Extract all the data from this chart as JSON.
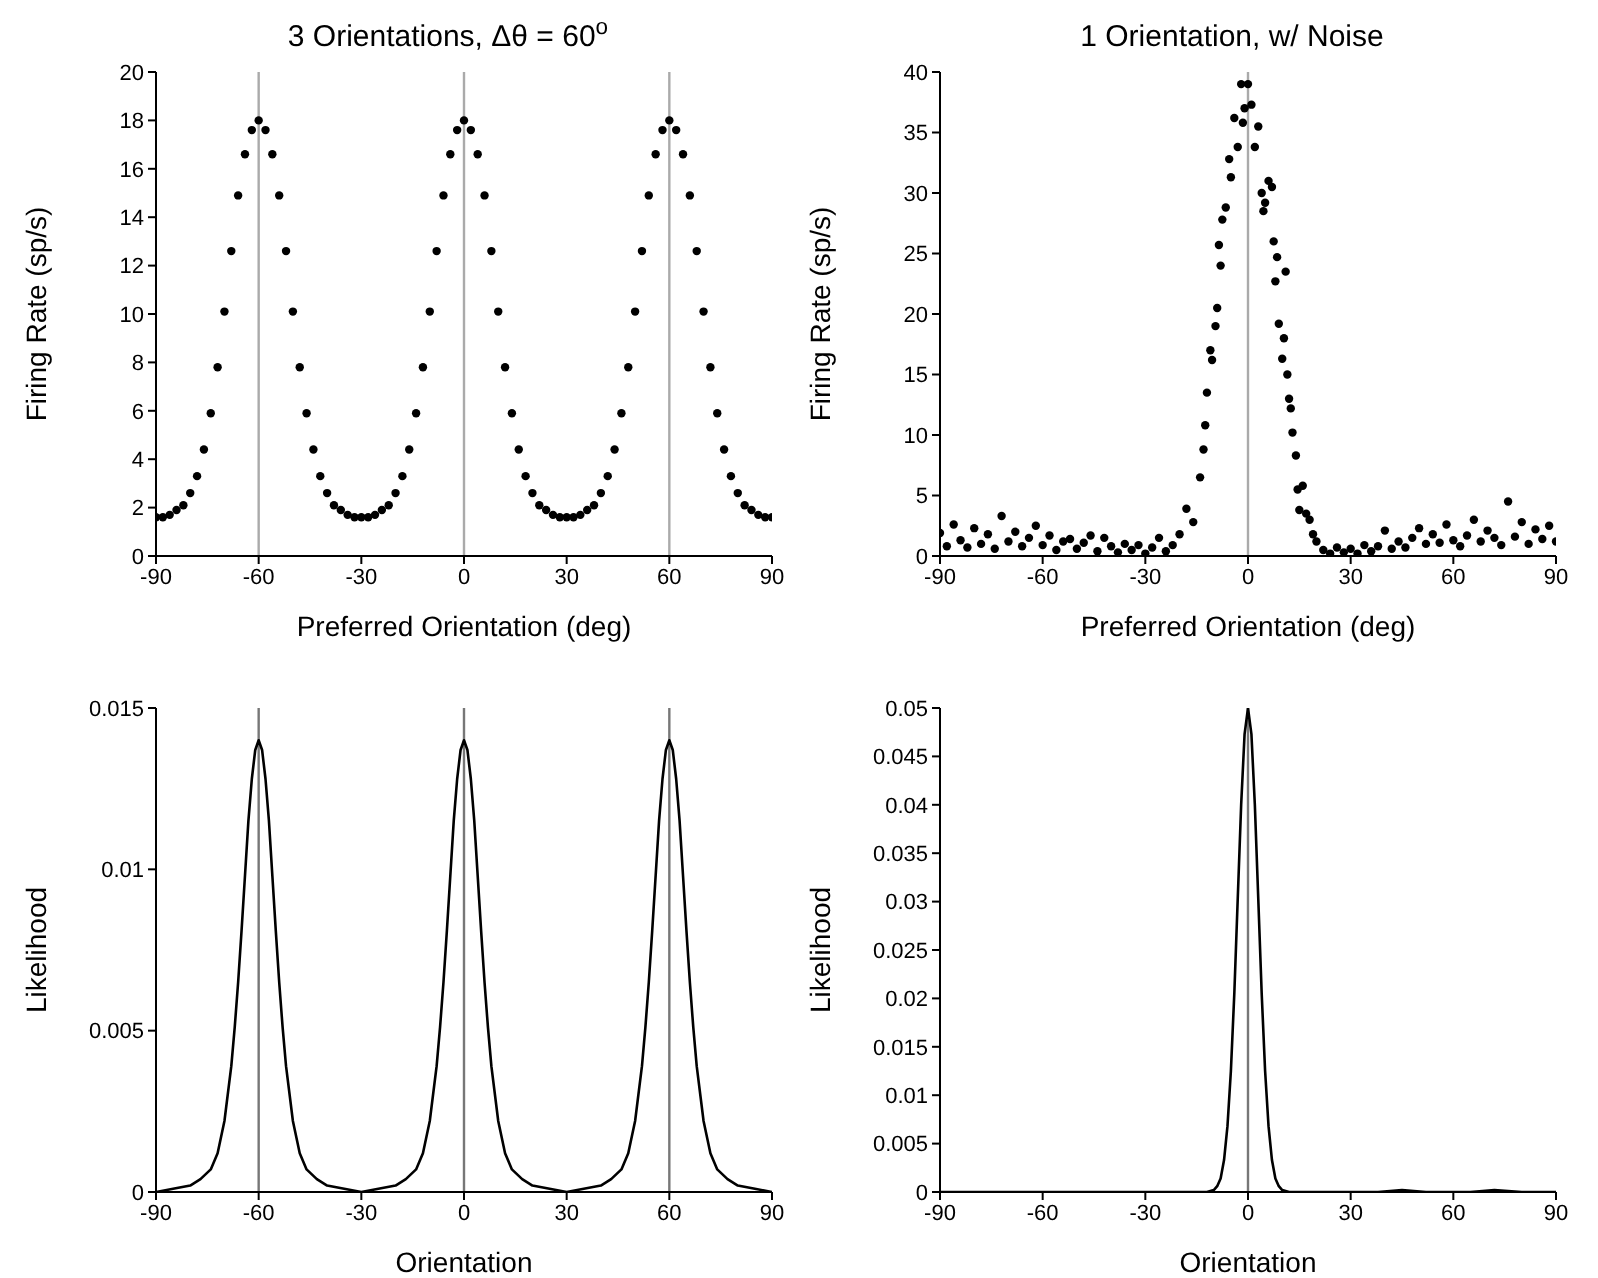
{
  "chart_data": [
    {
      "type": "scatter",
      "title": "3 Orientations, Δθ = 60$^{o}$",
      "xlabel": "Preferred Orientation (deg)",
      "ylabel": "Firing Rate (sp/s)",
      "xlim": [
        -90,
        90
      ],
      "xticks": [
        -90,
        -60,
        -30,
        0,
        30,
        60,
        90
      ],
      "ylim": [
        0,
        20
      ],
      "yticks": [
        0,
        2,
        4,
        6,
        8,
        10,
        12,
        14,
        16,
        18,
        20
      ],
      "marker": "circle",
      "x": [
        -90,
        -88,
        -86,
        -84,
        -82,
        -80,
        -78,
        -76,
        -74,
        -72,
        -70,
        -68,
        -66,
        -64,
        -62,
        -60,
        -58,
        -56,
        -54,
        -52,
        -50,
        -48,
        -46,
        -44,
        -42,
        -40,
        -38,
        -36,
        -34,
        -32,
        -30,
        -28,
        -26,
        -24,
        -22,
        -20,
        -18,
        -16,
        -14,
        -12,
        -10,
        -8,
        -6,
        -4,
        -2,
        0,
        2,
        4,
        6,
        8,
        10,
        12,
        14,
        16,
        18,
        20,
        22,
        24,
        26,
        28,
        30,
        32,
        34,
        36,
        38,
        40,
        42,
        44,
        46,
        48,
        50,
        52,
        54,
        56,
        58,
        60,
        62,
        64,
        66,
        68,
        70,
        72,
        74,
        76,
        78,
        80,
        82,
        84,
        86,
        88,
        90
      ],
      "series": [
        {
          "color": "#000000",
          "values": [
            1.6,
            1.6,
            1.7,
            1.9,
            2.1,
            2.6,
            3.3,
            4.4,
            5.9,
            7.8,
            10.1,
            12.6,
            14.9,
            16.6,
            17.6,
            18,
            17.6,
            16.6,
            14.9,
            12.6,
            10.1,
            7.8,
            5.9,
            4.4,
            3.3,
            2.6,
            2.1,
            1.9,
            1.7,
            1.6,
            1.6,
            1.6,
            1.7,
            1.9,
            2.1,
            2.6,
            3.3,
            4.4,
            5.9,
            7.8,
            10.1,
            12.6,
            14.9,
            16.6,
            17.6,
            18,
            17.6,
            16.6,
            14.9,
            12.6,
            10.1,
            7.8,
            5.9,
            4.4,
            3.3,
            2.6,
            2.1,
            1.9,
            1.7,
            1.6,
            1.6,
            1.6,
            1.7,
            1.9,
            2.1,
            2.6,
            3.3,
            4.4,
            5.9,
            7.8,
            10.1,
            12.6,
            14.9,
            16.6,
            17.6,
            18,
            17.6,
            16.6,
            14.9,
            12.6,
            10.1,
            7.8,
            5.9,
            4.4,
            3.3,
            2.6,
            2.1,
            1.9,
            1.7,
            1.6,
            1.6
          ]
        }
      ],
      "ref_lines": [
        {
          "axis": "x",
          "value": -60,
          "color": "#aaaaaa"
        },
        {
          "axis": "x",
          "value": 0,
          "color": "#aaaaaa"
        },
        {
          "axis": "x",
          "value": 60,
          "color": "#aaaaaa"
        }
      ]
    },
    {
      "type": "scatter",
      "title": "1 Orientation, w/ Noise",
      "xlabel": "Preferred Orientation (deg)",
      "ylabel": "Firing Rate (sp/s)",
      "xlim": [
        -90,
        90
      ],
      "xticks": [
        -90,
        -60,
        -30,
        0,
        30,
        60,
        90
      ],
      "ylim": [
        0,
        40
      ],
      "yticks": [
        0,
        5,
        10,
        15,
        20,
        25,
        30,
        35,
        40
      ],
      "marker": "circle",
      "x": [
        -90,
        -88,
        -86,
        -84,
        -82,
        -80,
        -78,
        -76,
        -74,
        -72,
        -70,
        -68,
        -66,
        -64,
        -62,
        -60,
        -58,
        -56,
        -54,
        -52,
        -50,
        -48,
        -46,
        -44,
        -42,
        -40,
        -38,
        -36,
        -34,
        -32,
        -30,
        -28,
        -26,
        -24,
        -22,
        -20,
        -18,
        -16,
        -14,
        -13,
        -12.5,
        -12,
        -11,
        -10.5,
        -9.5,
        -9,
        -8.5,
        -8,
        -7.5,
        -6.5,
        -5.5,
        -5,
        -4,
        -3,
        -2,
        -1.5,
        -1,
        0,
        1,
        2,
        3,
        4,
        4.5,
        5,
        6,
        7,
        7.5,
        8,
        8.5,
        9,
        10,
        10.5,
        11,
        11.5,
        12,
        12.5,
        13,
        14,
        14.5,
        15,
        16,
        17,
        18,
        19,
        20,
        22,
        24,
        26,
        28,
        30,
        32,
        34,
        36,
        38,
        40,
        42,
        44,
        46,
        48,
        50,
        52,
        54,
        56,
        58,
        60,
        62,
        64,
        66,
        68,
        70,
        72,
        74,
        76,
        78,
        80,
        82,
        84,
        86,
        88,
        90
      ],
      "series": [
        {
          "color": "#000000",
          "values": [
            1.9,
            0.8,
            2.6,
            1.3,
            0.7,
            2.3,
            1.0,
            1.8,
            0.6,
            3.3,
            1.2,
            2.0,
            0.8,
            1.5,
            2.5,
            0.9,
            1.7,
            0.5,
            1.2,
            1.4,
            0.6,
            1.1,
            1.7,
            0.4,
            1.5,
            0.8,
            0.3,
            1.0,
            0.5,
            0.9,
            0.2,
            0.7,
            1.5,
            0.4,
            0.9,
            1.8,
            3.9,
            2.8,
            6.5,
            8.8,
            10.8,
            13.5,
            17,
            16.2,
            19,
            20.5,
            25.7,
            24,
            27.8,
            28.8,
            32.8,
            31.3,
            36.2,
            33.8,
            39,
            35.8,
            37,
            39,
            37.3,
            33.8,
            35.5,
            30,
            28.5,
            29.2,
            31,
            30.5,
            26,
            22.7,
            24.7,
            19.2,
            16.3,
            18,
            23.5,
            15,
            13,
            12.2,
            10.2,
            8.3,
            5.5,
            3.8,
            5.8,
            3.5,
            3,
            1.8,
            1.2,
            0.5,
            0.2,
            0.7,
            0.3,
            0.6,
            0.2,
            0.9,
            0.4,
            0.8,
            2.1,
            0.6,
            1.2,
            0.7,
            1.5,
            2.3,
            1.0,
            1.8,
            1.1,
            2.6,
            1.3,
            0.8,
            1.7,
            3.0,
            1.2,
            2.1,
            1.5,
            0.9,
            4.5,
            1.6,
            2.8,
            1.0,
            2.2,
            1.4,
            2.5,
            1.2
          ]
        }
      ],
      "ref_lines": [
        {
          "axis": "x",
          "value": 0,
          "color": "#aaaaaa"
        }
      ]
    },
    {
      "type": "line",
      "xlabel": "Orientation",
      "ylabel": "Likelihood",
      "xlim": [
        -90,
        90
      ],
      "xticks": [
        -90,
        -60,
        -30,
        0,
        30,
        60,
        90
      ],
      "ylim": [
        0,
        0.015
      ],
      "yticks": [
        0,
        0.005,
        0.01,
        0.015
      ],
      "x": [
        -90,
        -85,
        -80,
        -77,
        -74,
        -72,
        -70,
        -68,
        -67,
        -66,
        -65,
        -64,
        -63,
        -62,
        -61,
        -60,
        -59,
        -58,
        -57,
        -56,
        -55,
        -54,
        -53,
        -52,
        -50,
        -48,
        -46,
        -43,
        -40,
        -35,
        -30,
        -25,
        -20,
        -17,
        -14,
        -12,
        -10,
        -8,
        -7,
        -6,
        -5,
        -4,
        -3,
        -2,
        -1,
        0,
        1,
        2,
        3,
        4,
        5,
        6,
        7,
        8,
        10,
        12,
        14,
        17,
        20,
        25,
        30,
        35,
        40,
        43,
        46,
        48,
        50,
        52,
        53,
        54,
        55,
        56,
        57,
        58,
        59,
        60,
        61,
        62,
        63,
        64,
        65,
        66,
        67,
        68,
        70,
        72,
        74,
        77,
        80,
        85,
        90
      ],
      "series": [
        {
          "color": "#000000",
          "values": [
            0,
            0.0001,
            0.0002,
            0.0004,
            0.0007,
            0.0012,
            0.0022,
            0.0039,
            0.0051,
            0.0065,
            0.0081,
            0.0098,
            0.0115,
            0.0128,
            0.0137,
            0.014,
            0.0137,
            0.0128,
            0.0115,
            0.0098,
            0.0081,
            0.0065,
            0.0051,
            0.0039,
            0.0022,
            0.0012,
            0.0007,
            0.0004,
            0.0002,
            0.0001,
            0,
            0.0001,
            0.0002,
            0.0004,
            0.0007,
            0.0012,
            0.0022,
            0.0039,
            0.0051,
            0.0065,
            0.0081,
            0.0098,
            0.0115,
            0.0128,
            0.0137,
            0.014,
            0.0137,
            0.0128,
            0.0115,
            0.0098,
            0.0081,
            0.0065,
            0.0051,
            0.0039,
            0.0022,
            0.0012,
            0.0007,
            0.0004,
            0.0002,
            0.0001,
            0,
            0.0001,
            0.0002,
            0.0004,
            0.0007,
            0.0012,
            0.0022,
            0.0039,
            0.0051,
            0.0065,
            0.0081,
            0.0098,
            0.0115,
            0.0128,
            0.0137,
            0.014,
            0.0137,
            0.0128,
            0.0115,
            0.0098,
            0.0081,
            0.0065,
            0.0051,
            0.0039,
            0.0022,
            0.0012,
            0.0007,
            0.0004,
            0.0002,
            0.0001,
            0
          ]
        }
      ],
      "ref_lines": [
        {
          "axis": "x",
          "value": -60,
          "color": "#777777"
        },
        {
          "axis": "x",
          "value": 0,
          "color": "#777777"
        },
        {
          "axis": "x",
          "value": 60,
          "color": "#777777"
        }
      ]
    },
    {
      "type": "line",
      "xlabel": "Orientation",
      "ylabel": "Likelihood",
      "xlim": [
        -90,
        90
      ],
      "xticks": [
        -90,
        -60,
        -30,
        0,
        30,
        60,
        90
      ],
      "ylim": [
        0,
        0.05
      ],
      "yticks": [
        0,
        0.005,
        0.01,
        0.015,
        0.02,
        0.025,
        0.03,
        0.035,
        0.04,
        0.045,
        0.05
      ],
      "x": [
        -90,
        -12,
        -10,
        -9,
        -8,
        -7,
        -6,
        -5,
        -4,
        -3,
        -2,
        -1,
        0,
        1,
        2,
        3,
        4,
        5,
        6,
        7,
        8,
        9,
        10,
        12,
        38,
        45,
        52,
        65,
        72,
        80,
        90
      ],
      "series": [
        {
          "color": "#000000",
          "values": [
            0,
            0,
            0.0002,
            0.0006,
            0.0014,
            0.0033,
            0.0068,
            0.0125,
            0.0205,
            0.0303,
            0.04,
            0.0473,
            0.05,
            0.0473,
            0.04,
            0.0303,
            0.0205,
            0.0125,
            0.0068,
            0.0033,
            0.0014,
            0.0006,
            0.0002,
            0,
            0,
            0.0002,
            0,
            0,
            0.0002,
            0,
            0
          ]
        }
      ],
      "ref_lines": [
        {
          "axis": "x",
          "value": 0,
          "color": "#777777"
        }
      ]
    }
  ]
}
